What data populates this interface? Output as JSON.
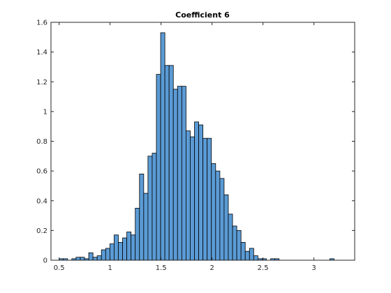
{
  "chart_data": {
    "type": "bar",
    "title": "Coefficient 6",
    "xlabel": "",
    "ylabel": "",
    "xlim": [
      0.42,
      3.4
    ],
    "ylim": [
      0,
      1.6
    ],
    "x_ticks": [
      0.5,
      1,
      1.5,
      2,
      2.5,
      3
    ],
    "x_tick_labels": [
      "0.5",
      "1",
      "1.5",
      "2",
      "2.5",
      "3"
    ],
    "y_ticks": [
      0,
      0.2,
      0.4,
      0.6,
      0.8,
      1,
      1.2,
      1.4,
      1.6
    ],
    "y_tick_labels": [
      "0",
      "0.2",
      "0.4",
      "0.6",
      "0.8",
      "1",
      "1.2",
      "1.4",
      "1.6"
    ],
    "grid": false,
    "bar_color": "#5b9bd5",
    "edge_color": "#000000",
    "bin_start": 0.5,
    "bin_width": 0.0415,
    "values": [
      0.01,
      0.01,
      0,
      0.01,
      0.02,
      0.02,
      0.01,
      0.05,
      0.02,
      0.03,
      0.07,
      0.08,
      0.11,
      0.17,
      0.12,
      0.15,
      0.19,
      0.17,
      0.35,
      0.58,
      0.45,
      0.7,
      0.72,
      1.25,
      1.53,
      1.31,
      1.31,
      1.15,
      1.17,
      1.17,
      0.87,
      0.83,
      0.93,
      0.91,
      0.82,
      0.82,
      0.65,
      0.6,
      0.55,
      0.44,
      0.31,
      0.23,
      0.2,
      0.12,
      0.06,
      0.08,
      0.03,
      0.01,
      0.01,
      0,
      0.01,
      0.01,
      0,
      0,
      0,
      0,
      0,
      0,
      0,
      0,
      0,
      0,
      0,
      0,
      0.01
    ]
  }
}
